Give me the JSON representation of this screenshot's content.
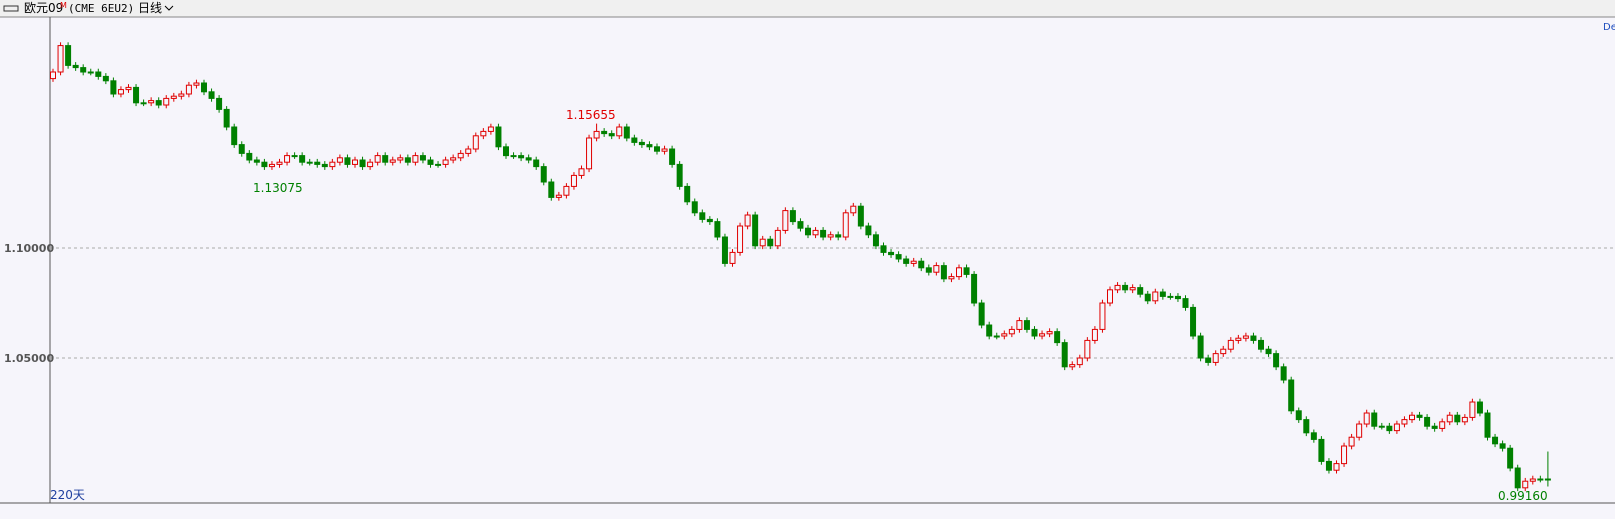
{
  "chart_data": {
    "type": "candlestick",
    "symbol": "欧元09",
    "symbol_mark": "M",
    "contract": "(CME 6EU2)",
    "period": "日线",
    "days": "220天",
    "corner": "De",
    "high_label": "1.15655",
    "low_label": "1.13075",
    "last_label": "0.99160",
    "ylim": [
      0.9841,
      1.205
    ],
    "yticks": [
      {
        "value": 1.05,
        "label": "1.05000"
      },
      {
        "value": 1.1,
        "label": "1.10000"
      }
    ],
    "grid": true,
    "up_color": "#e00000",
    "down_color": "#008000",
    "ohlc": [
      [
        1.177,
        1.1815,
        1.1755,
        1.18
      ],
      [
        1.18,
        1.1935,
        1.1785,
        1.192
      ],
      [
        1.192,
        1.1935,
        1.1815,
        1.183
      ],
      [
        1.183,
        1.1845,
        1.1805,
        1.182
      ],
      [
        1.182,
        1.1835,
        1.1785,
        1.18
      ],
      [
        1.18,
        1.1815,
        1.1785,
        1.18
      ],
      [
        1.18,
        1.1815,
        1.1765,
        1.178
      ],
      [
        1.178,
        1.1795,
        1.1745,
        1.176
      ],
      [
        1.176,
        1.1775,
        1.1685,
        1.17
      ],
      [
        1.17,
        1.1735,
        1.1685,
        1.172
      ],
      [
        1.172,
        1.1745,
        1.1705,
        1.173
      ],
      [
        1.173,
        1.1745,
        1.1645,
        1.166
      ],
      [
        1.166,
        1.1675,
        1.1645,
        1.166
      ],
      [
        1.166,
        1.1685,
        1.1645,
        1.167
      ],
      [
        1.167,
        1.1685,
        1.1635,
        1.165
      ],
      [
        1.165,
        1.1695,
        1.1635,
        1.168
      ],
      [
        1.168,
        1.1705,
        1.1665,
        1.169
      ],
      [
        1.169,
        1.1715,
        1.1675,
        1.17
      ],
      [
        1.17,
        1.1755,
        1.1685,
        1.174
      ],
      [
        1.174,
        1.1765,
        1.1725,
        1.175
      ],
      [
        1.175,
        1.1765,
        1.1695,
        1.171
      ],
      [
        1.171,
        1.1725,
        1.1665,
        1.168
      ],
      [
        1.168,
        1.1695,
        1.1615,
        1.163
      ],
      [
        1.163,
        1.1645,
        1.1535,
        1.155
      ],
      [
        1.155,
        1.1565,
        1.1455,
        1.147
      ],
      [
        1.147,
        1.1485,
        1.1415,
        1.143
      ],
      [
        1.143,
        1.1445,
        1.1385,
        1.14
      ],
      [
        1.14,
        1.1415,
        1.1375,
        1.139
      ],
      [
        1.139,
        1.1405,
        1.1355,
        1.137
      ],
      [
        1.137,
        1.1395,
        1.1355,
        1.138
      ],
      [
        1.138,
        1.1405,
        1.1365,
        1.139
      ],
      [
        1.139,
        1.1435,
        1.1375,
        1.142
      ],
      [
        1.142,
        1.1435,
        1.1405,
        1.142
      ],
      [
        1.142,
        1.1435,
        1.1375,
        1.139
      ],
      [
        1.139,
        1.1405,
        1.1375,
        1.139
      ],
      [
        1.139,
        1.1405,
        1.1365,
        1.138
      ],
      [
        1.138,
        1.1395,
        1.1355,
        1.137
      ],
      [
        1.137,
        1.1405,
        1.1355,
        1.139
      ],
      [
        1.139,
        1.1425,
        1.1375,
        1.141
      ],
      [
        1.141,
        1.1425,
        1.1365,
        1.138
      ],
      [
        1.138,
        1.1415,
        1.1365,
        1.14
      ],
      [
        1.14,
        1.1415,
        1.1355,
        1.137
      ],
      [
        1.137,
        1.1405,
        1.1355,
        1.139
      ],
      [
        1.139,
        1.1435,
        1.1375,
        1.142
      ],
      [
        1.142,
        1.1435,
        1.1375,
        1.139
      ],
      [
        1.139,
        1.1415,
        1.1375,
        1.14
      ],
      [
        1.14,
        1.1425,
        1.1385,
        1.141
      ],
      [
        1.141,
        1.1425,
        1.1375,
        1.139
      ],
      [
        1.139,
        1.1435,
        1.1375,
        1.142
      ],
      [
        1.142,
        1.1435,
        1.1385,
        1.14
      ],
      [
        1.14,
        1.1415,
        1.1365,
        1.138
      ],
      [
        1.138,
        1.1395,
        1.1365,
        1.138
      ],
      [
        1.138,
        1.1415,
        1.1365,
        1.14
      ],
      [
        1.14,
        1.1425,
        1.1385,
        1.141
      ],
      [
        1.141,
        1.1445,
        1.1395,
        1.143
      ],
      [
        1.143,
        1.1465,
        1.1415,
        1.145
      ],
      [
        1.145,
        1.1525,
        1.1435,
        1.151
      ],
      [
        1.151,
        1.1545,
        1.1495,
        1.153
      ],
      [
        1.153,
        1.1565,
        1.1515,
        1.155
      ],
      [
        1.155,
        1.1565,
        1.1445,
        1.146
      ],
      [
        1.146,
        1.1475,
        1.1405,
        1.142
      ],
      [
        1.142,
        1.1435,
        1.1405,
        1.142
      ],
      [
        1.142,
        1.1435,
        1.1395,
        1.141
      ],
      [
        1.141,
        1.1425,
        1.1385,
        1.14
      ],
      [
        1.14,
        1.1415,
        1.1355,
        1.137
      ],
      [
        1.137,
        1.1385,
        1.1285,
        1.13
      ],
      [
        1.13,
        1.1315,
        1.1215,
        1.123
      ],
      [
        1.123,
        1.1255,
        1.1215,
        1.124
      ],
      [
        1.124,
        1.1295,
        1.1225,
        1.128
      ],
      [
        1.128,
        1.1345,
        1.1265,
        1.133
      ],
      [
        1.133,
        1.1375,
        1.1315,
        1.136
      ],
      [
        1.136,
        1.1515,
        1.1345,
        1.15
      ],
      [
        1.15,
        1.15655,
        1.1485,
        1.153
      ],
      [
        1.153,
        1.1545,
        1.1505,
        1.152
      ],
      [
        1.152,
        1.1535,
        1.1495,
        1.151
      ],
      [
        1.151,
        1.1565,
        1.1495,
        1.155
      ],
      [
        1.155,
        1.1565,
        1.1485,
        1.15
      ],
      [
        1.15,
        1.1515,
        1.1465,
        1.148
      ],
      [
        1.148,
        1.1495,
        1.1455,
        1.147
      ],
      [
        1.147,
        1.1485,
        1.1445,
        1.146
      ],
      [
        1.146,
        1.1475,
        1.1425,
        1.144
      ],
      [
        1.144,
        1.1465,
        1.1425,
        1.145
      ],
      [
        1.145,
        1.1465,
        1.1365,
        1.138
      ],
      [
        1.138,
        1.1395,
        1.1265,
        1.128
      ],
      [
        1.128,
        1.1295,
        1.1195,
        1.121
      ],
      [
        1.121,
        1.1225,
        1.1145,
        1.116
      ],
      [
        1.116,
        1.1175,
        1.1115,
        1.113
      ],
      [
        1.113,
        1.1145,
        1.1105,
        1.112
      ],
      [
        1.112,
        1.1135,
        1.1035,
        1.105
      ],
      [
        1.105,
        1.1065,
        1.0915,
        1.093
      ],
      [
        1.093,
        1.0995,
        1.0915,
        1.098
      ],
      [
        1.098,
        1.1115,
        1.0965,
        1.11
      ],
      [
        1.11,
        1.1165,
        1.1085,
        1.115
      ],
      [
        1.115,
        1.1165,
        1.0995,
        1.101
      ],
      [
        1.101,
        1.1055,
        1.0995,
        1.104
      ],
      [
        1.104,
        1.1055,
        1.0995,
        1.101
      ],
      [
        1.101,
        1.1095,
        1.0995,
        1.108
      ],
      [
        1.108,
        1.1185,
        1.1065,
        1.117
      ],
      [
        1.117,
        1.1185,
        1.1105,
        1.112
      ],
      [
        1.112,
        1.1135,
        1.1075,
        1.109
      ],
      [
        1.109,
        1.1105,
        1.1045,
        1.106
      ],
      [
        1.106,
        1.1095,
        1.1045,
        1.108
      ],
      [
        1.108,
        1.1095,
        1.1035,
        1.105
      ],
      [
        1.105,
        1.1075,
        1.1035,
        1.106
      ],
      [
        1.106,
        1.1075,
        1.1035,
        1.105
      ],
      [
        1.105,
        1.1175,
        1.1035,
        1.116
      ],
      [
        1.116,
        1.1205,
        1.1145,
        1.119
      ],
      [
        1.119,
        1.1205,
        1.1085,
        1.11
      ],
      [
        1.11,
        1.1115,
        1.1045,
        1.106
      ],
      [
        1.106,
        1.1075,
        1.0995,
        1.101
      ],
      [
        1.101,
        1.1025,
        1.0965,
        1.098
      ],
      [
        1.098,
        1.0995,
        1.0955,
        1.097
      ],
      [
        1.097,
        1.0985,
        1.0935,
        1.095
      ],
      [
        1.095,
        1.0965,
        1.0915,
        1.093
      ],
      [
        1.093,
        1.0955,
        1.0915,
        1.094
      ],
      [
        1.094,
        1.0955,
        1.0895,
        1.091
      ],
      [
        1.091,
        1.0925,
        1.0875,
        1.089
      ],
      [
        1.089,
        1.0935,
        1.0875,
        1.092
      ],
      [
        1.092,
        1.0935,
        1.0845,
        1.086
      ],
      [
        1.086,
        1.0885,
        1.0845,
        1.087
      ],
      [
        1.087,
        1.0925,
        1.0855,
        1.091
      ],
      [
        1.091,
        1.0925,
        1.0865,
        1.088
      ],
      [
        1.088,
        1.0895,
        1.0735,
        1.075
      ],
      [
        1.075,
        1.0765,
        1.0635,
        1.065
      ],
      [
        1.065,
        1.0665,
        1.0585,
        1.06
      ],
      [
        1.06,
        1.0615,
        1.0585,
        1.06
      ],
      [
        1.06,
        1.0625,
        1.0585,
        1.061
      ],
      [
        1.061,
        1.0645,
        1.0595,
        1.063
      ],
      [
        1.063,
        1.0685,
        1.0615,
        1.067
      ],
      [
        1.067,
        1.0685,
        1.0615,
        1.063
      ],
      [
        1.063,
        1.0645,
        1.0585,
        1.06
      ],
      [
        1.06,
        1.0625,
        1.0585,
        1.061
      ],
      [
        1.061,
        1.0635,
        1.0595,
        1.062
      ],
      [
        1.062,
        1.0635,
        1.0555,
        1.057
      ],
      [
        1.057,
        1.0585,
        1.0445,
        1.046
      ],
      [
        1.046,
        1.0485,
        1.0445,
        1.047
      ],
      [
        1.047,
        1.0515,
        1.0455,
        1.05
      ],
      [
        1.05,
        1.0595,
        1.0485,
        1.058
      ],
      [
        1.058,
        1.0645,
        1.0565,
        1.063
      ],
      [
        1.063,
        1.0765,
        1.0615,
        1.075
      ],
      [
        1.075,
        1.0825,
        1.0735,
        1.081
      ],
      [
        1.081,
        1.0845,
        1.0795,
        1.083
      ],
      [
        1.083,
        1.0845,
        1.0795,
        1.081
      ],
      [
        1.081,
        1.0835,
        1.0795,
        1.082
      ],
      [
        1.082,
        1.0835,
        1.0775,
        1.079
      ],
      [
        1.079,
        1.0805,
        1.0745,
        1.076
      ],
      [
        1.076,
        1.0815,
        1.0745,
        1.08
      ],
      [
        1.08,
        1.0815,
        1.0765,
        1.078
      ],
      [
        1.078,
        1.0795,
        1.0765,
        1.078
      ],
      [
        1.078,
        1.0795,
        1.0755,
        1.077
      ],
      [
        1.077,
        1.0785,
        1.0715,
        1.073
      ],
      [
        1.073,
        1.0745,
        1.0585,
        1.06
      ],
      [
        1.06,
        1.0615,
        1.0485,
        1.05
      ],
      [
        1.05,
        1.0515,
        1.0465,
        1.048
      ],
      [
        1.048,
        1.0535,
        1.0465,
        1.052
      ],
      [
        1.052,
        1.0555,
        1.0505,
        1.054
      ],
      [
        1.054,
        1.0595,
        1.0525,
        1.058
      ],
      [
        1.058,
        1.0605,
        1.0565,
        1.059
      ],
      [
        1.059,
        1.0615,
        1.0575,
        1.06
      ],
      [
        1.06,
        1.0615,
        1.0565,
        1.058
      ],
      [
        1.058,
        1.0595,
        1.0525,
        1.054
      ],
      [
        1.054,
        1.0555,
        1.0505,
        1.052
      ],
      [
        1.052,
        1.0535,
        1.0445,
        1.046
      ],
      [
        1.046,
        1.0475,
        1.0385,
        1.04
      ],
      [
        1.04,
        1.0415,
        1.0245,
        1.026
      ],
      [
        1.026,
        1.0275,
        1.0205,
        1.022
      ],
      [
        1.022,
        1.0235,
        1.0145,
        1.016
      ],
      [
        1.016,
        1.0175,
        1.0115,
        1.013
      ],
      [
        1.013,
        1.0145,
        1.0015,
        1.003
      ],
      [
        1.003,
        1.0045,
        0.9975,
        0.999
      ],
      [
        0.999,
        1.0035,
        0.9975,
        1.002
      ],
      [
        1.002,
        1.0115,
        1.0005,
        1.01
      ],
      [
        1.01,
        1.0155,
        1.0085,
        1.014
      ],
      [
        1.014,
        1.0215,
        1.0125,
        1.02
      ],
      [
        1.02,
        1.0265,
        1.0185,
        1.025
      ],
      [
        1.025,
        1.0265,
        1.0175,
        1.019
      ],
      [
        1.019,
        1.0205,
        1.0175,
        1.019
      ],
      [
        1.019,
        1.0205,
        1.0155,
        1.017
      ],
      [
        1.017,
        1.0215,
        1.0155,
        1.02
      ],
      [
        1.02,
        1.0235,
        1.0185,
        1.022
      ],
      [
        1.022,
        1.0255,
        1.0205,
        1.024
      ],
      [
        1.024,
        1.0255,
        1.0215,
        1.023
      ],
      [
        1.023,
        1.0245,
        1.0175,
        1.019
      ],
      [
        1.019,
        1.0205,
        1.0165,
        1.018
      ],
      [
        1.018,
        1.0225,
        1.0165,
        1.021
      ],
      [
        1.021,
        1.0255,
        1.0195,
        1.024
      ],
      [
        1.024,
        1.0255,
        1.0195,
        1.021
      ],
      [
        1.021,
        1.0245,
        1.0195,
        1.023
      ],
      [
        1.023,
        1.0315,
        1.0215,
        1.03
      ],
      [
        1.03,
        1.0315,
        1.0235,
        1.025
      ],
      [
        1.025,
        1.0265,
        1.0125,
        1.014
      ],
      [
        1.014,
        1.0155,
        1.0095,
        1.011
      ],
      [
        1.011,
        1.0125,
        1.0075,
        1.009
      ],
      [
        1.009,
        1.0105,
        0.9985,
        1.0
      ],
      [
        1.0,
        1.0015,
        0.9895,
        0.991
      ],
      [
        0.991,
        0.9955,
        0.9895,
        0.994
      ],
      [
        0.994,
        0.9965,
        0.9925,
        0.995
      ],
      [
        0.995,
        0.9965,
        0.9935,
        0.995
      ],
      [
        0.995,
        1.0075,
        0.9916,
        0.995
      ]
    ]
  }
}
